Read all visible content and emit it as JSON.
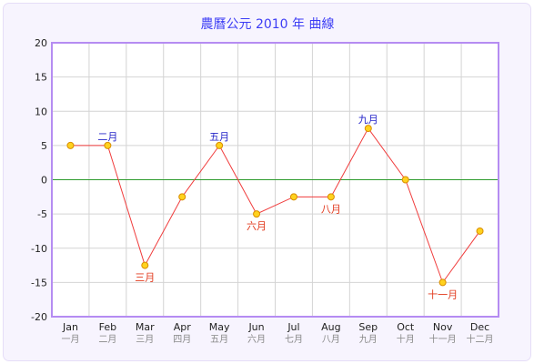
{
  "chart_data": {
    "type": "line",
    "title": "農曆公元 2010 年 曲線",
    "xlabel": "",
    "ylabel": "",
    "categories": [
      "Jan",
      "Feb",
      "Mar",
      "Apr",
      "May",
      "Jun",
      "Jul",
      "Aug",
      "Sep",
      "Oct",
      "Nov",
      "Dec"
    ],
    "categories_secondary": [
      "一月",
      "二月",
      "三月",
      "四月",
      "五月",
      "六月",
      "七月",
      "八月",
      "九月",
      "十月",
      "十一月",
      "十二月"
    ],
    "values": [
      5,
      5,
      -12.5,
      -2.5,
      5,
      -5,
      -2.5,
      -2.5,
      7.5,
      0,
      -15,
      -7.5
    ],
    "annotations": [
      {
        "index": 1,
        "text": "二月"
      },
      {
        "index": 2,
        "text": "三月"
      },
      {
        "index": 4,
        "text": "五月"
      },
      {
        "index": 5,
        "text": "六月"
      },
      {
        "index": 7,
        "text": "八月"
      },
      {
        "index": 8,
        "text": "九月"
      },
      {
        "index": 10,
        "text": "十一月"
      }
    ],
    "ylim": [
      -20,
      20
    ],
    "yticks": [
      -20,
      -15,
      -10,
      -5,
      0,
      5,
      10,
      15,
      20
    ],
    "grid": true,
    "legend": "none",
    "colors": {
      "line": "#f03c3c",
      "marker_fill": "#ffd21e",
      "marker_stroke": "#d98e00",
      "zero_line": "#2e9b2e",
      "plot_border": "#b58cf2",
      "grid": "#d4d4d4",
      "label_positive": "#2424c8",
      "label_negative": "#e23a1e"
    }
  }
}
